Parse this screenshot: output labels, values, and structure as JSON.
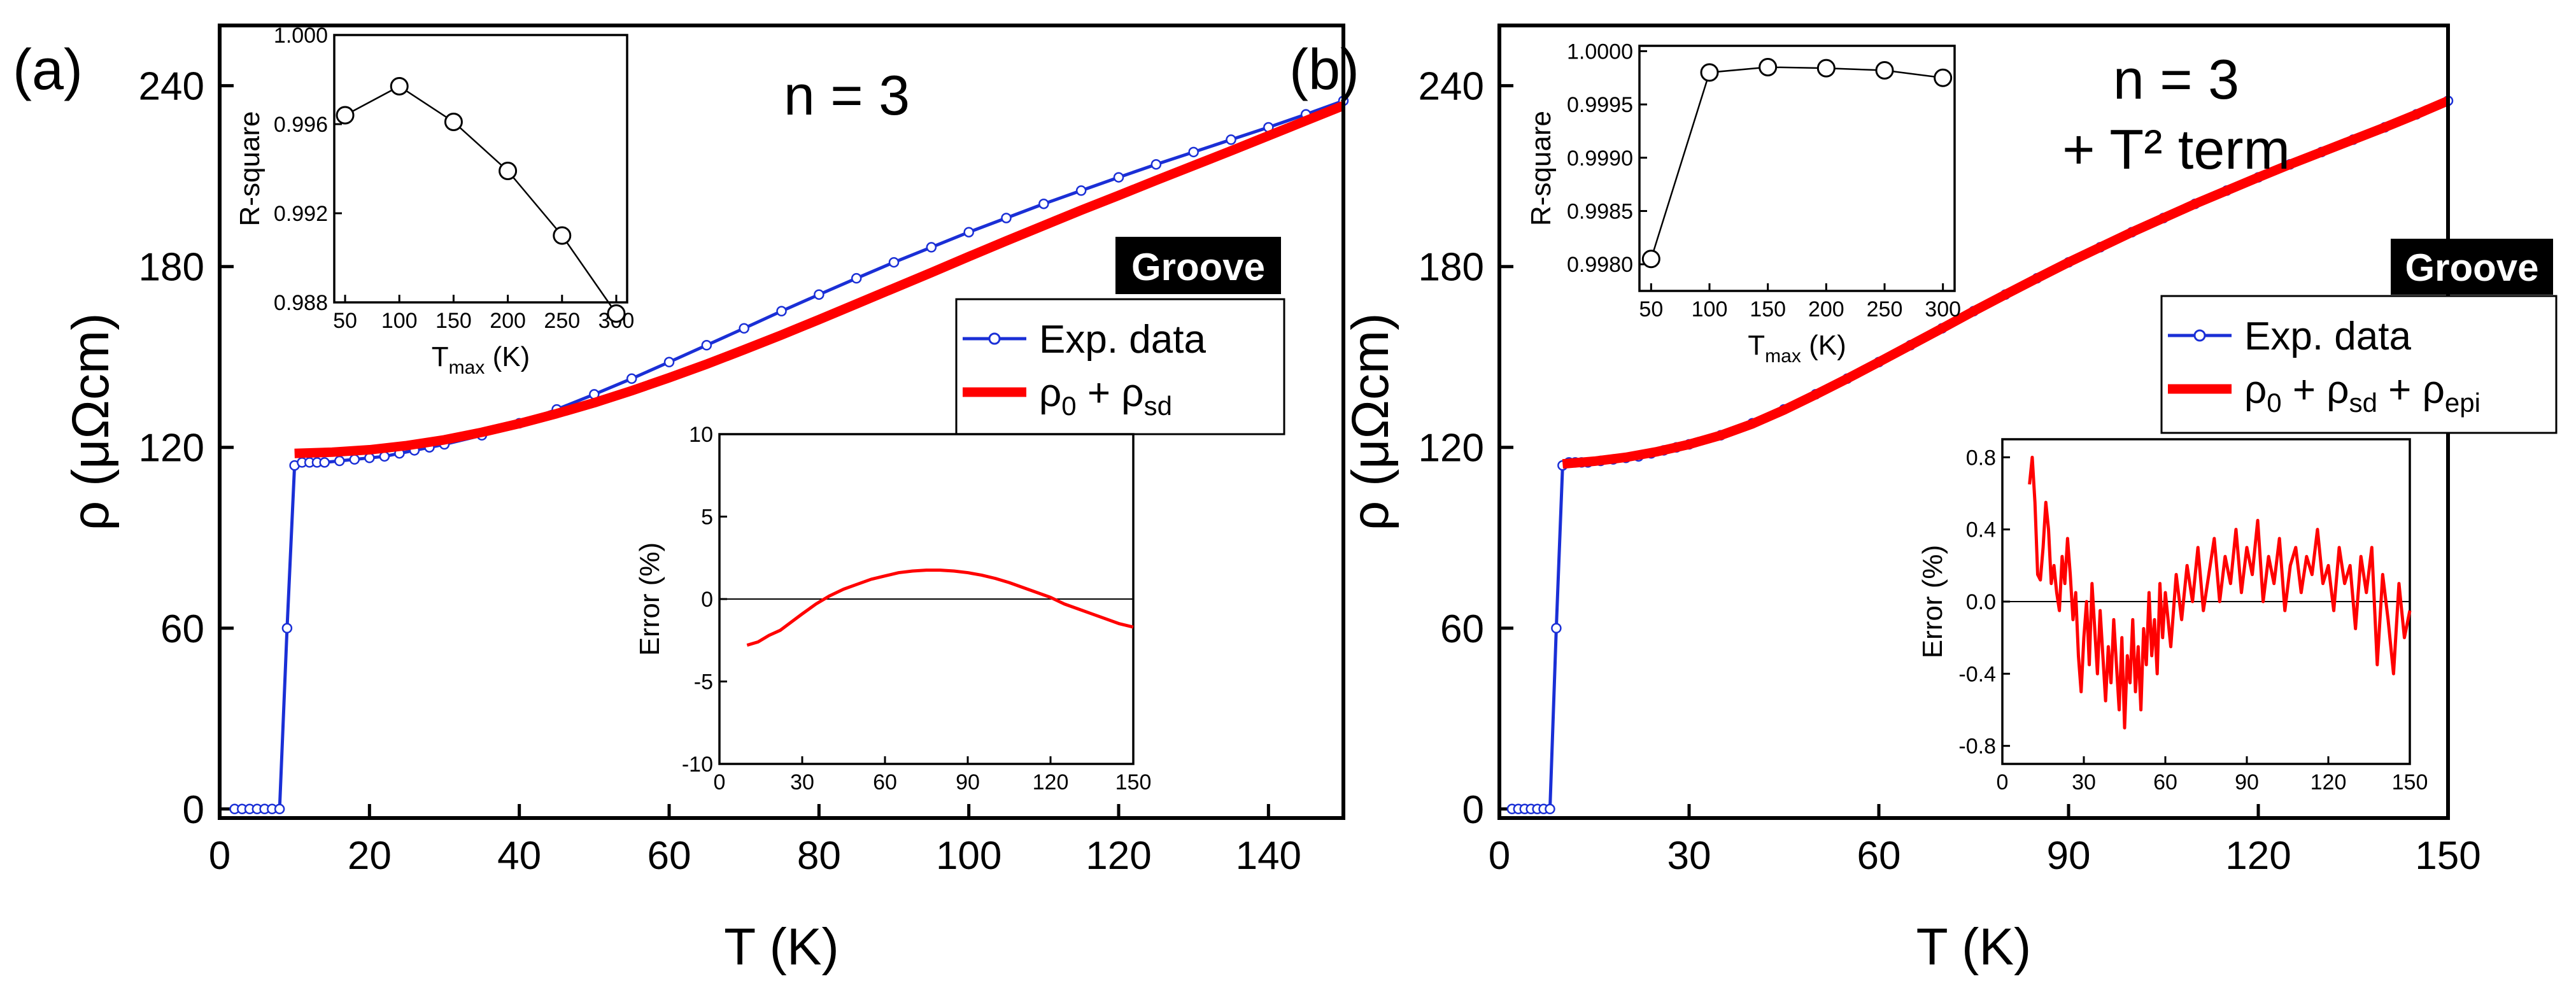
{
  "chart_data": [
    {
      "type": "line",
      "panel_label": "(a)",
      "title": "n = 3",
      "subtitle": "",
      "badge": "Groove",
      "xlabel": "T (K)",
      "ylabel": "ρ (μΩcm)",
      "xlim": [
        0,
        150
      ],
      "ylim": [
        -3,
        260
      ],
      "xticks": [
        0,
        20,
        40,
        60,
        80,
        100,
        120,
        140
      ],
      "yticks": [
        0,
        60,
        120,
        180,
        240
      ],
      "series": [
        {
          "name": "Exp. data",
          "color": "#1a2fd6",
          "x": [
            2,
            3,
            4,
            5,
            6,
            7,
            8,
            9,
            10,
            11,
            12,
            13,
            14,
            16,
            18,
            20,
            22,
            24,
            26,
            28,
            30,
            35,
            40,
            45,
            50,
            55,
            60,
            65,
            70,
            75,
            80,
            85,
            90,
            95,
            100,
            105,
            110,
            115,
            120,
            125,
            130,
            135,
            140,
            145,
            150
          ],
          "values": [
            0,
            0,
            0,
            0,
            0,
            0,
            0,
            60,
            114,
            115,
            115,
            115,
            115,
            115.5,
            116,
            116.5,
            117,
            118,
            119,
            120,
            121,
            124,
            128,
            132.6,
            137.6,
            142.8,
            148.3,
            153.9,
            159.5,
            165.2,
            170.7,
            176.1,
            181.4,
            186.4,
            191.4,
            196.1,
            200.8,
            205.2,
            209.6,
            213.9,
            218,
            222.1,
            226.2,
            230.5,
            235
          ]
        },
        {
          "name": "ρ0 + ρsd",
          "color": "#ff0000",
          "x": [
            10,
            15,
            20,
            25,
            30,
            35,
            40,
            45,
            50,
            55,
            60,
            65,
            70,
            75,
            80,
            85,
            90,
            95,
            100,
            105,
            110,
            115,
            120,
            125,
            130,
            135,
            140,
            145,
            150
          ],
          "values": [
            118,
            118.4,
            119.2,
            120.6,
            122.5,
            125,
            127.9,
            131.2,
            134.8,
            138.8,
            143.1,
            147.6,
            152.4,
            157.3,
            162.4,
            167.6,
            172.8,
            178,
            183.3,
            188.5,
            193.6,
            198.7,
            203.6,
            208.6,
            213.5,
            218.4,
            223.4,
            228.4,
            233.4
          ]
        }
      ],
      "legend_labels": {
        "exp": "Exp. data",
        "fit_base": "ρ",
        "fit_sub0": "0",
        "fit_plus": " + ρ",
        "fit_sub1": "sd",
        "fit_plus2": "",
        "fit_sub2": ""
      },
      "inset_top": {
        "type": "line",
        "xlabel": "T",
        "xlabel_sub": "max",
        "xlabel_unit": " (K)",
        "ylabel": "R-square",
        "xlim": [
          40,
          310
        ],
        "ylim": [
          0.988,
          1.0
        ],
        "xticks": [
          50,
          100,
          150,
          200,
          250,
          300
        ],
        "yticks": [
          0.988,
          0.992,
          0.996,
          1.0
        ],
        "ytick_labels": [
          "0.988",
          "0.992",
          "0.996",
          "1.000"
        ],
        "x": [
          50,
          100,
          150,
          200,
          250,
          300
        ],
        "values": [
          0.9964,
          0.9977,
          0.9961,
          0.9939,
          0.991,
          0.9875
        ]
      },
      "inset_error": {
        "type": "line",
        "xlabel": "",
        "ylabel": "Error (%)",
        "color": "#ff0000",
        "xlim": [
          0,
          150
        ],
        "ylim": [
          -10,
          10
        ],
        "xticks": [
          0,
          30,
          60,
          90,
          120,
          150
        ],
        "yticks": [
          -10,
          -5,
          0,
          5,
          10
        ],
        "ytick_labels": [
          "-10",
          "-5",
          "0",
          "5",
          "10"
        ],
        "x": [
          10,
          14,
          18,
          22,
          26,
          30,
          35,
          40,
          45,
          50,
          55,
          60,
          65,
          70,
          75,
          80,
          85,
          90,
          95,
          100,
          105,
          110,
          115,
          120,
          125,
          130,
          135,
          140,
          145,
          150
        ],
        "values": [
          -2.8,
          -2.6,
          -2.2,
          -1.9,
          -1.4,
          -0.9,
          -0.3,
          0.2,
          0.6,
          0.9,
          1.2,
          1.4,
          1.6,
          1.7,
          1.75,
          1.75,
          1.7,
          1.6,
          1.45,
          1.25,
          1.0,
          0.7,
          0.4,
          0.1,
          -0.3,
          -0.6,
          -0.9,
          -1.2,
          -1.5,
          -1.7
        ]
      }
    },
    {
      "type": "line",
      "panel_label": "(b)",
      "title": "n = 3",
      "subtitle": "+ T² term",
      "badge": "Groove",
      "xlabel": "T (K)",
      "ylabel": "ρ (μΩcm)",
      "xlim": [
        0,
        150
      ],
      "ylim": [
        -3,
        260
      ],
      "xticks": [
        0,
        30,
        60,
        90,
        120,
        150
      ],
      "yticks": [
        0,
        60,
        120,
        180,
        240
      ],
      "series": [
        {
          "name": "Exp. data",
          "color": "#1a2fd6",
          "x": [
            2,
            3,
            4,
            5,
            6,
            7,
            8,
            9,
            10,
            11,
            12,
            13,
            14,
            16,
            18,
            20,
            22,
            24,
            26,
            28,
            30,
            35,
            40,
            45,
            50,
            55,
            60,
            65,
            70,
            75,
            80,
            85,
            90,
            95,
            100,
            105,
            110,
            115,
            120,
            125,
            130,
            135,
            140,
            145,
            150
          ],
          "values": [
            0,
            0,
            0,
            0,
            0,
            0,
            0,
            60,
            114,
            115,
            115,
            115,
            115,
            115.5,
            116,
            116.5,
            117,
            118,
            119,
            120,
            121,
            124,
            128,
            132.6,
            137.6,
            142.8,
            148.3,
            153.9,
            159.5,
            165.2,
            170.7,
            176.1,
            181.4,
            186.4,
            191.4,
            196.1,
            200.8,
            205.2,
            209.6,
            213.9,
            218,
            222.1,
            226.2,
            230.5,
            235
          ]
        },
        {
          "name": "ρ0 + ρsd + ρepi",
          "color": "#ff0000",
          "x": [
            10,
            15,
            20,
            25,
            30,
            35,
            40,
            45,
            50,
            55,
            60,
            65,
            70,
            75,
            80,
            85,
            90,
            95,
            100,
            105,
            110,
            115,
            120,
            125,
            130,
            135,
            140,
            145,
            150
          ],
          "values": [
            114.5,
            115.4,
            116.7,
            118.6,
            121,
            124,
            127.8,
            132.4,
            137.5,
            142.8,
            148.3,
            153.9,
            159.5,
            165.2,
            170.7,
            176.1,
            181.4,
            186.4,
            191.4,
            196.1,
            200.8,
            205.2,
            209.6,
            213.9,
            218,
            222.1,
            226.2,
            230.5,
            235
          ]
        }
      ],
      "legend_labels": {
        "exp": "Exp. data",
        "fit_base": "ρ",
        "fit_sub0": "0",
        "fit_plus": " + ρ",
        "fit_sub1": "sd",
        "fit_plus2": " + ρ",
        "fit_sub2": "epi"
      },
      "inset_top": {
        "type": "line",
        "xlabel": "T",
        "xlabel_sub": "max",
        "xlabel_unit": " (K)",
        "ylabel": "R-square",
        "xlim": [
          40,
          310
        ],
        "ylim": [
          0.99775,
          1.00005
        ],
        "xticks": [
          50,
          100,
          150,
          200,
          250,
          300
        ],
        "yticks": [
          0.998,
          0.9985,
          0.999,
          0.9995,
          1.0
        ],
        "ytick_labels": [
          "0.9980",
          "0.9985",
          "0.9990",
          "0.9995",
          "1.0000"
        ],
        "x": [
          50,
          100,
          150,
          200,
          250,
          300
        ],
        "values": [
          0.99805,
          0.9998,
          0.99985,
          0.99984,
          0.99982,
          0.99975
        ]
      },
      "inset_error": {
        "type": "line",
        "xlabel": "",
        "ylabel": "Error (%)",
        "color": "#ff0000",
        "xlim": [
          0,
          150
        ],
        "ylim": [
          -0.9,
          0.9
        ],
        "xticks": [
          0,
          30,
          60,
          90,
          120,
          150
        ],
        "yticks": [
          -0.8,
          -0.4,
          0.0,
          0.4,
          0.8
        ],
        "ytick_labels": [
          "-0.8",
          "-0.4",
          "0.0",
          "0.4",
          "0.8"
        ],
        "x": [
          10,
          11,
          12,
          13,
          14,
          15,
          16,
          17,
          18,
          19,
          20,
          21,
          22,
          23,
          24,
          25,
          26,
          27,
          28,
          29,
          30,
          31,
          32,
          33,
          34,
          35,
          36,
          37,
          38,
          39,
          40,
          41,
          42,
          43,
          44,
          45,
          46,
          47,
          48,
          49,
          50,
          51,
          52,
          53,
          54,
          55,
          56,
          57,
          58,
          59,
          60,
          62,
          64,
          66,
          68,
          70,
          72,
          74,
          76,
          78,
          80,
          82,
          84,
          86,
          88,
          90,
          92,
          94,
          96,
          98,
          100,
          102,
          104,
          106,
          108,
          110,
          112,
          114,
          116,
          118,
          120,
          122,
          124,
          126,
          128,
          130,
          132,
          134,
          136,
          138,
          140,
          142,
          144,
          146,
          148,
          150
        ],
        "values": [
          0.65,
          0.8,
          0.55,
          0.15,
          0.12,
          0.3,
          0.55,
          0.4,
          0.1,
          0.2,
          0.05,
          -0.05,
          0.25,
          0.1,
          0.35,
          0.15,
          -0.1,
          0.05,
          -0.3,
          -0.5,
          -0.2,
          0.0,
          -0.35,
          0.1,
          -0.15,
          -0.4,
          -0.05,
          -0.3,
          -0.55,
          -0.25,
          -0.45,
          -0.1,
          -0.35,
          -0.6,
          -0.2,
          -0.7,
          -0.3,
          -0.45,
          -0.1,
          -0.5,
          -0.25,
          -0.6,
          -0.15,
          -0.35,
          0.05,
          -0.3,
          -0.1,
          -0.4,
          0.1,
          -0.2,
          0.05,
          -0.25,
          0.15,
          -0.1,
          0.2,
          0.0,
          0.3,
          -0.05,
          0.15,
          0.35,
          0.0,
          0.25,
          0.1,
          0.4,
          0.05,
          0.3,
          0.15,
          0.45,
          0.0,
          0.25,
          0.1,
          0.35,
          -0.05,
          0.2,
          0.3,
          0.05,
          0.25,
          0.15,
          0.4,
          0.1,
          0.2,
          -0.05,
          0.3,
          0.1,
          0.2,
          -0.15,
          0.25,
          0.05,
          0.3,
          -0.35,
          0.15,
          -0.1,
          -0.4,
          0.1,
          -0.2,
          -0.05
        ]
      }
    }
  ]
}
